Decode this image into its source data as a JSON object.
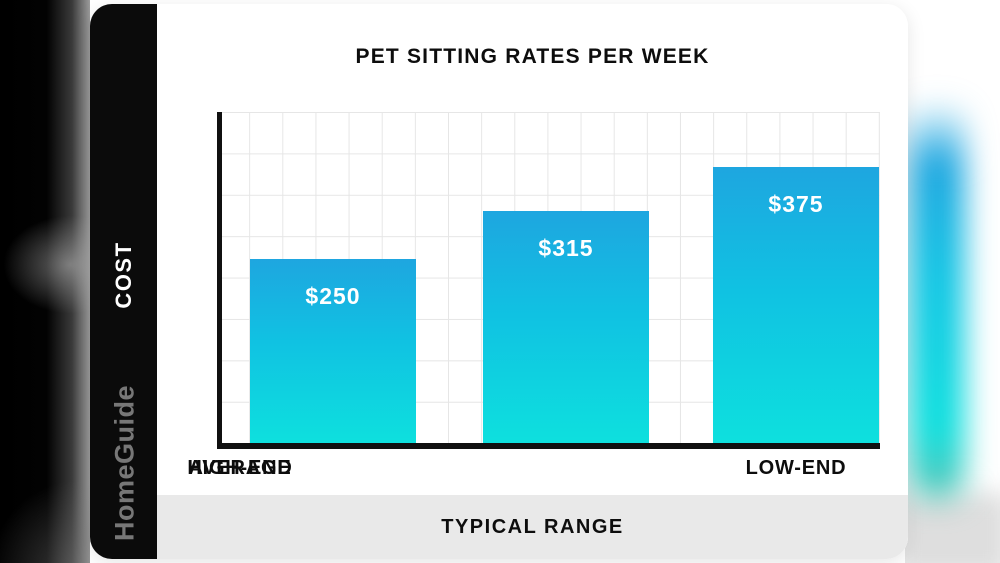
{
  "sidebar": {
    "axis_label": "COST",
    "brand": "HomeGuide"
  },
  "chart_data": {
    "type": "bar",
    "title": "PET SITTING RATES PER WEEK",
    "categories": [
      "LOW-END",
      "AVERAGE",
      "HIGH-END"
    ],
    "values": [
      250,
      315,
      375
    ],
    "value_labels": [
      "$250",
      "$315",
      "$375"
    ],
    "currency_prefix": "$",
    "xlabel": "TYPICAL RANGE",
    "ylabel": "COST",
    "ylim": [
      0,
      450
    ],
    "grid": true,
    "legend": false,
    "colors": {
      "bar_top": "#1ea6e0",
      "bar_bottom": "#0ee0de",
      "axis": "#101010",
      "grid_line": "#e6e6e6",
      "value_text": "#ffffff",
      "label_text": "#0d0d0d",
      "band_bg": "#e9e9e9",
      "sidebar_bg": "#0b0b0b",
      "brand_text": "#777777"
    }
  },
  "footer": {
    "label": "TYPICAL RANGE"
  }
}
